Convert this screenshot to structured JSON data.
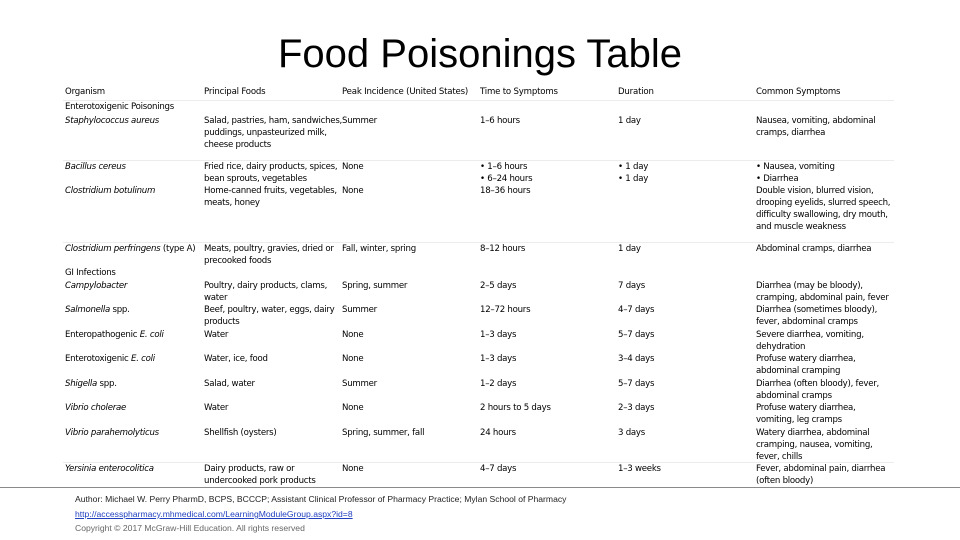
{
  "title": "Food Poisonings Table",
  "columns": [
    "Organism",
    "Principal Foods",
    "Peak Incidence (United States)",
    "Time to Symptoms",
    "Duration",
    "Common Symptoms"
  ],
  "sections": [
    "Enterotoxigenic Poisonings",
    "GI Infections"
  ],
  "rows": [
    {
      "organism": "Staphylococcus aureus",
      "foods": [
        "Salad, pastries, ham, sandwiches,",
        "puddings, unpasteurized milk,",
        "cheese products"
      ],
      "peak": [
        "Summer"
      ],
      "time": [
        "1–6 hours"
      ],
      "duration": [
        "1 day"
      ],
      "symptoms": [
        "Nausea, vomiting, abdominal",
        "cramps, diarrhea"
      ]
    },
    {
      "organism": "Bacillus cereus",
      "foods": [
        "Fried rice, dairy products, spices,",
        "bean sprouts, vegetables"
      ],
      "peak": [
        "None"
      ],
      "time": [
        "• 1–6 hours",
        "• 6–24 hours"
      ],
      "duration": [
        "• 1 day",
        "• 1 day"
      ],
      "symptoms": [
        "• Nausea, vomiting",
        "• Diarrhea"
      ]
    },
    {
      "organism": "Clostridium botulinum",
      "foods": [
        "Home-canned fruits, vegetables,",
        "meats, honey"
      ],
      "peak": [
        "None"
      ],
      "time": [
        "18–36 hours"
      ],
      "duration": [],
      "symptoms": [
        "Double vision, blurred vision,",
        "drooping eyelids, slurred speech,",
        "difficulty swallowing, dry mouth,",
        "and muscle weakness"
      ]
    },
    {
      "organism": "Clostridium perfringens",
      "organism_suffix": " (type A)",
      "foods": [
        "Meats, poultry, gravies, dried or",
        "precooked foods"
      ],
      "peak": [
        "Fall, winter, spring"
      ],
      "time": [
        "8–12 hours"
      ],
      "duration": [
        "1 day"
      ],
      "symptoms": [
        "Abdominal cramps, diarrhea"
      ]
    },
    {
      "organism": "Campylobacter",
      "foods": [
        "Poultry, dairy products, clams,",
        "water"
      ],
      "peak": [
        "Spring, summer"
      ],
      "time": [
        "2–5 days"
      ],
      "duration": [
        "7 days"
      ],
      "symptoms": [
        "Diarrhea (may be bloody),",
        "cramping, abdominal pain, fever"
      ]
    },
    {
      "organism": "Salmonella",
      "organism_suffix": " spp.",
      "foods": [
        "Beef, poultry, water, eggs, dairy",
        "products"
      ],
      "peak": [
        "Summer"
      ],
      "time": [
        "12–72 hours"
      ],
      "duration": [
        "4–7 days"
      ],
      "symptoms": [
        "Diarrhea (sometimes bloody),",
        "fever, abdominal cramps"
      ]
    },
    {
      "organism_prefix": "Enteropathogenic ",
      "organism": "E. coli",
      "foods": [
        "Water"
      ],
      "peak": [
        "None"
      ],
      "time": [
        "1–3 days"
      ],
      "duration": [
        "5–7 days"
      ],
      "symptoms": [
        "Severe diarrhea, vomiting,",
        "dehydration"
      ]
    },
    {
      "organism_prefix": "Enterotoxigenic ",
      "organism": "E. coli",
      "foods": [
        "Water, ice, food"
      ],
      "peak": [
        "None"
      ],
      "time": [
        "1–3 days"
      ],
      "duration": [
        "3–4 days"
      ],
      "symptoms": [
        "Profuse watery diarrhea,",
        "abdominal cramping"
      ]
    },
    {
      "organism": "Shigella",
      "organism_suffix": " spp.",
      "foods": [
        "Salad, water"
      ],
      "peak": [
        "Summer"
      ],
      "time": [
        "1–2 days"
      ],
      "duration": [
        "5–7 days"
      ],
      "symptoms": [
        "Diarrhea (often bloody), fever,",
        "abdominal cramps"
      ]
    },
    {
      "organism": "Vibrio cholerae",
      "foods": [
        "Water"
      ],
      "peak": [
        "None"
      ],
      "time": [
        "2 hours to 5 days"
      ],
      "duration": [
        "2–3 days"
      ],
      "symptoms": [
        "Profuse watery diarrhea,",
        "vomiting, leg cramps"
      ]
    },
    {
      "organism": "Vibrio parahemolyticus",
      "foods": [
        "Shellfish (oysters)"
      ],
      "peak": [
        "Spring, summer, fall"
      ],
      "time": [
        "24 hours"
      ],
      "duration": [
        "3 days"
      ],
      "symptoms": [
        "Watery diarrhea, abdominal",
        "cramping, nausea, vomiting,",
        "fever, chills"
      ]
    },
    {
      "organism": "Yersinia enterocolitica",
      "foods": [
        "Dairy products, raw or",
        "undercooked pork products"
      ],
      "peak": [
        "None"
      ],
      "time": [
        "4–7 days"
      ],
      "duration": [
        "1–3 weeks"
      ],
      "symptoms": [
        "Fever, abdominal pain, diarrhea",
        "(often bloody)"
      ]
    }
  ],
  "footer": {
    "author": "Author: Michael W. Perry PharmD, BCPS, BCCCP; Assistant Clinical Professor of Pharmacy Practice; Mylan School of Pharmacy",
    "link": "http://accesspharmacy.mhmedical.com/LearningModuleGroup.aspx?id=8",
    "copyright": "Copyright © 2017 McGraw-Hill Education. All rights reserved"
  }
}
